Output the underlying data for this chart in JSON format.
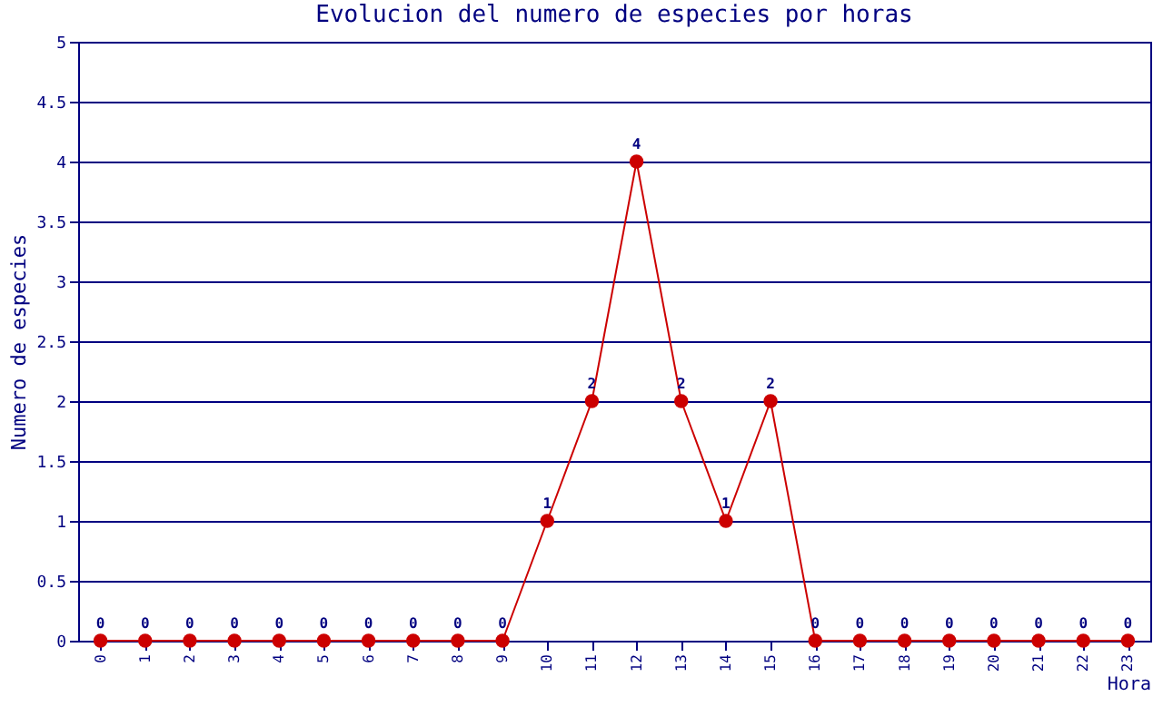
{
  "chart_data": {
    "type": "line",
    "title": "Evolucion del numero de especies por horas",
    "xlabel": "Hora",
    "ylabel": "Numero de especies",
    "categories": [
      "0",
      "1",
      "2",
      "3",
      "4",
      "5",
      "6",
      "7",
      "8",
      "9",
      "10",
      "11",
      "12",
      "13",
      "14",
      "15",
      "16",
      "17",
      "18",
      "19",
      "20",
      "21",
      "22",
      "23"
    ],
    "series": [
      {
        "color": "#cc0000",
        "values": [
          0,
          0,
          0,
          0,
          0,
          0,
          0,
          0,
          0,
          0,
          1,
          2,
          4,
          2,
          1,
          2,
          0,
          0,
          0,
          0,
          0,
          0,
          0,
          0
        ]
      }
    ],
    "ylim": [
      0,
      5
    ],
    "yticks": [
      0,
      0.5,
      1,
      1.5,
      2,
      2.5,
      3,
      3.5,
      4,
      4.5,
      5
    ],
    "grid": "y",
    "marker": "circle",
    "data_labels": true
  }
}
